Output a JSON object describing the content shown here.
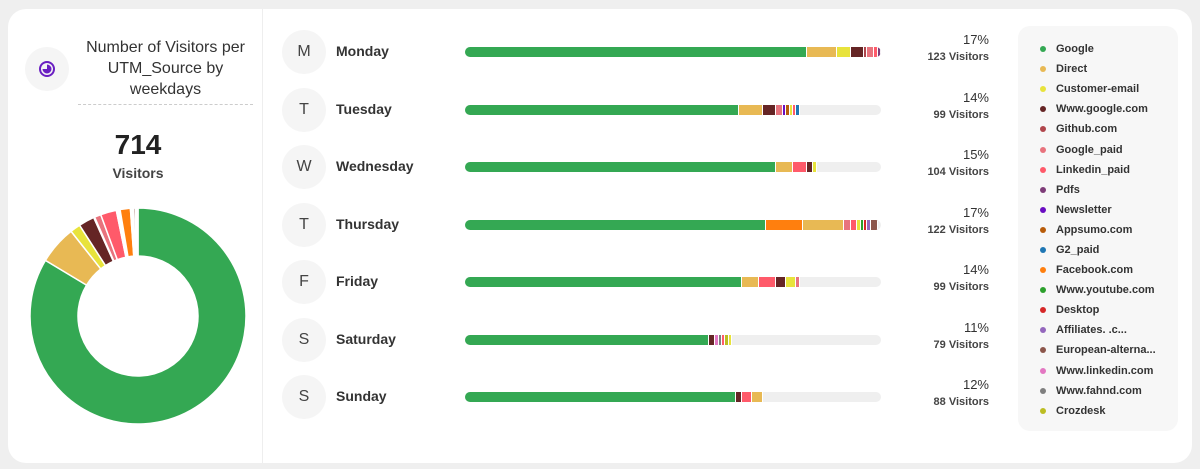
{
  "header": {
    "title": "Number of Visitors per UTM_Source by weekdays",
    "icon": "pie-chart-icon",
    "accent": "#6a1fc2"
  },
  "summary": {
    "total": "714",
    "label": "Visitors"
  },
  "chart_data": {
    "type": "bar",
    "stacked": true,
    "orientation": "horizontal",
    "sources": [
      {
        "name": "Google",
        "color": "#34a853"
      },
      {
        "name": "Direct",
        "color": "#e8b954"
      },
      {
        "name": "Customer-email",
        "color": "#e8e33c"
      },
      {
        "name": "Www.google.com",
        "color": "#652525"
      },
      {
        "name": "Github.com",
        "color": "#b0464c"
      },
      {
        "name": "Google_paid",
        "color": "#e8737d"
      },
      {
        "name": "Linkedin_paid",
        "color": "#ff5a6a"
      },
      {
        "name": "Pdfs",
        "color": "#7e3c78"
      },
      {
        "name": "Newsletter",
        "color": "#6a0dc2"
      },
      {
        "name": "Appsumo.com",
        "color": "#b85c0a"
      },
      {
        "name": "G2_paid",
        "color": "#1f77b4"
      },
      {
        "name": "Facebook.com",
        "color": "#ff7f0e"
      },
      {
        "name": "Www.youtube.com",
        "color": "#2ca02c"
      },
      {
        "name": "Desktop",
        "color": "#d62728"
      },
      {
        "name": "Affiliates.        .c...",
        "color": "#9467bd"
      },
      {
        "name": "European-alterna...",
        "color": "#8c564b"
      },
      {
        "name": "Www.linkedin.com",
        "color": "#e377c2"
      },
      {
        "name": "Www.fahnd.com",
        "color": "#7f7f7f"
      },
      {
        "name": "Crozdesk",
        "color": "#bcbd22"
      }
    ],
    "max": 123,
    "days": [
      {
        "initial": "M",
        "name": "Monday",
        "pct": "17%",
        "visitors": "123 Visitors",
        "segments": [
          [
            "Google",
            101
          ],
          [
            "Direct",
            9
          ],
          [
            "Customer-email",
            4
          ],
          [
            "Www.google.com",
            4
          ],
          [
            "Github.com",
            1
          ],
          [
            "Google_paid",
            2
          ],
          [
            "Linkedin_paid",
            1
          ],
          [
            "Pdfs",
            1
          ]
        ]
      },
      {
        "initial": "T",
        "name": "Tuesday",
        "pct": "14%",
        "visitors": "99 Visitors",
        "segments": [
          [
            "Google",
            81
          ],
          [
            "Direct",
            7
          ],
          [
            "Www.google.com",
            4
          ],
          [
            "Google_paid",
            2
          ],
          [
            "Newsletter",
            1
          ],
          [
            "Appsumo.com",
            1
          ],
          [
            "Customer-email",
            1
          ],
          [
            "Linkedin_paid",
            1
          ],
          [
            "G2_paid",
            1
          ]
        ]
      },
      {
        "initial": "W",
        "name": "Wednesday",
        "pct": "15%",
        "visitors": "104 Visitors",
        "segments": [
          [
            "Google",
            92
          ],
          [
            "Direct",
            5
          ],
          [
            "Linkedin_paid",
            4
          ],
          [
            "Www.google.com",
            2
          ],
          [
            "Customer-email",
            1
          ]
        ]
      },
      {
        "initial": "T",
        "name": "Thursday",
        "pct": "17%",
        "visitors": "122 Visitors",
        "segments": [
          [
            "Google",
            89
          ],
          [
            "Facebook.com",
            11
          ],
          [
            "Direct",
            12
          ],
          [
            "Google_paid",
            2
          ],
          [
            "Linkedin_paid",
            2
          ],
          [
            "Customer-email",
            1
          ],
          [
            "Www.youtube.com",
            1
          ],
          [
            "Desktop",
            1
          ],
          [
            "Affiliates.        .c...",
            1
          ],
          [
            "European-alterna...",
            2
          ]
        ]
      },
      {
        "initial": "F",
        "name": "Friday",
        "pct": "14%",
        "visitors": "99 Visitors",
        "segments": [
          [
            "Google",
            82
          ],
          [
            "Direct",
            5
          ],
          [
            "Linkedin_paid",
            5
          ],
          [
            "Www.google.com",
            3
          ],
          [
            "Customer-email",
            3
          ],
          [
            "Google_paid",
            1
          ]
        ]
      },
      {
        "initial": "S",
        "name": "Saturday",
        "pct": "11%",
        "visitors": "79 Visitors",
        "segments": [
          [
            "Google",
            72
          ],
          [
            "Www.google.com",
            2
          ],
          [
            "Www.linkedin.com",
            1
          ],
          [
            "Www.fahnd.com",
            1
          ],
          [
            "Linkedin_paid",
            1
          ],
          [
            "Crozdesk",
            1
          ],
          [
            "Customer-email",
            1
          ]
        ]
      },
      {
        "initial": "S",
        "name": "Sunday",
        "pct": "12%",
        "visitors": "88 Visitors",
        "segments": [
          [
            "Google",
            80
          ],
          [
            "Www.google.com",
            2
          ],
          [
            "Linkedin_paid",
            3
          ],
          [
            "Direct",
            3
          ]
        ]
      }
    ]
  }
}
